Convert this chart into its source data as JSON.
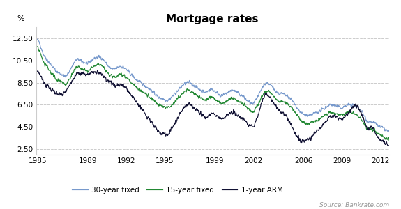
{
  "title": "Mortgage rates",
  "ylabel": "%",
  "source_text": "Source: Bankrate.com",
  "xlim": [
    1984.9,
    2012.7
  ],
  "ylim": [
    2.0,
    13.5
  ],
  "yticks": [
    2.5,
    4.5,
    6.5,
    8.5,
    10.5,
    12.5
  ],
  "xticks": [
    1985,
    1989,
    1992,
    1995,
    1999,
    2002,
    2006,
    2009,
    2012
  ],
  "color_30yr": "#7799cc",
  "color_15yr": "#228833",
  "color_arm": "#111133",
  "legend_labels": [
    "30-year fixed",
    "15-year fixed",
    "1-year ARM"
  ],
  "background_color": "#ffffff",
  "grid_color": "#cccccc"
}
